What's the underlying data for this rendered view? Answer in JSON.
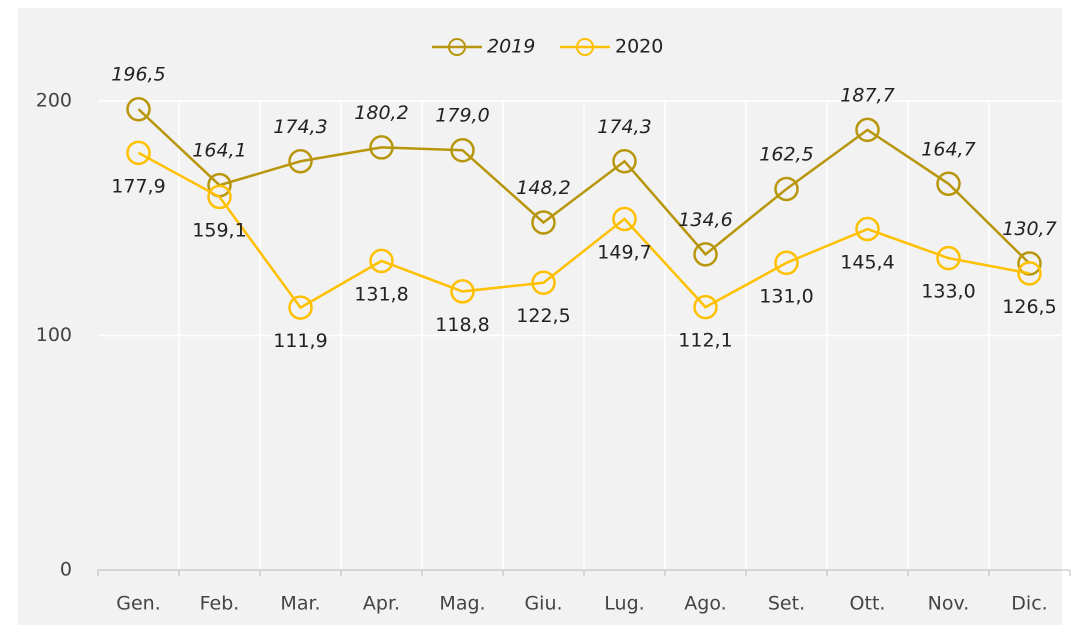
{
  "chart_data": {
    "type": "line",
    "categories": [
      "Gen.",
      "Feb.",
      "Mar.",
      "Apr.",
      "Mag.",
      "Giu.",
      "Lug.",
      "Ago.",
      "Set.",
      "Ott.",
      "Nov.",
      "Dic."
    ],
    "series": [
      {
        "name": "2019",
        "color": "#b8960c",
        "values": [
          196.5,
          164.1,
          174.3,
          180.2,
          179.0,
          148.2,
          174.3,
          134.6,
          162.5,
          187.7,
          164.7,
          130.7
        ],
        "value_labels": [
          "196,5",
          "164,1",
          "174,3",
          "180,2",
          "179,0",
          "148,2",
          "174,3",
          "134,6",
          "162,5",
          "187,7",
          "164,7",
          "130,7"
        ]
      },
      {
        "name": "2020",
        "color": "#ffc000",
        "values": [
          177.9,
          159.1,
          111.9,
          131.8,
          118.8,
          122.5,
          149.7,
          112.1,
          131.0,
          145.4,
          133.0,
          126.5
        ],
        "value_labels": [
          "177,9",
          "159,1",
          "111,9",
          "131,8",
          "118,8",
          "122,5",
          "149,7",
          "112,1",
          "131,0",
          "145,4",
          "133,0",
          "126,5"
        ]
      }
    ],
    "ylim": [
      0,
      200
    ],
    "yticks": [
      0,
      100,
      200
    ],
    "grid": true,
    "legend": "top"
  }
}
